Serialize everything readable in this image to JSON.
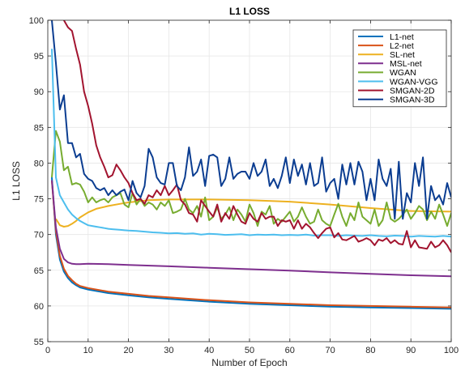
{
  "chart_data": {
    "type": "line",
    "title": "L1 LOSS",
    "xlabel": "Number of Epoch",
    "ylabel": "L1 LOSS",
    "xlim": [
      0,
      100
    ],
    "ylim": [
      55,
      100
    ],
    "xticks": [
      0,
      10,
      20,
      30,
      40,
      50,
      60,
      70,
      80,
      90,
      100
    ],
    "yticks": [
      55,
      60,
      65,
      70,
      75,
      80,
      85,
      90,
      95,
      100
    ],
    "grid": true,
    "legend_position": "top-right",
    "series": [
      {
        "name": "L1-net",
        "color": "#0072BD",
        "x": [
          1,
          2,
          3,
          4,
          5,
          6,
          7,
          8,
          10,
          12,
          15,
          20,
          25,
          30,
          40,
          50,
          60,
          70,
          80,
          90,
          100
        ],
        "y": [
          78,
          70,
          66.5,
          64.8,
          63.9,
          63.3,
          62.9,
          62.6,
          62.3,
          62.1,
          61.8,
          61.5,
          61.2,
          61.0,
          60.6,
          60.3,
          60.1,
          59.9,
          59.8,
          59.7,
          59.6
        ]
      },
      {
        "name": "L2-net",
        "color": "#D95319",
        "x": [
          1,
          2,
          3,
          4,
          5,
          6,
          7,
          8,
          10,
          12,
          15,
          20,
          25,
          30,
          40,
          50,
          60,
          70,
          80,
          90,
          100
        ],
        "y": [
          77.5,
          70.5,
          67,
          65.2,
          64.2,
          63.6,
          63.1,
          62.8,
          62.5,
          62.3,
          62.0,
          61.7,
          61.4,
          61.2,
          60.8,
          60.5,
          60.3,
          60.1,
          60.0,
          59.9,
          59.8
        ]
      },
      {
        "name": "SL-net",
        "color": "#EDB120",
        "x": [
          2,
          3,
          4,
          5,
          6,
          7,
          8,
          10,
          12,
          15,
          18,
          20,
          25,
          30,
          40,
          50,
          60,
          70,
          80,
          90,
          100
        ],
        "y": [
          72.2,
          71.3,
          71.1,
          71.2,
          71.5,
          71.9,
          72.4,
          73.1,
          73.6,
          74.0,
          74.3,
          74.5,
          74.8,
          74.9,
          74.9,
          74.8,
          74.6,
          74.2,
          73.7,
          73.3,
          73.2
        ]
      },
      {
        "name": "MSL-net",
        "color": "#7E2F8E",
        "x": [
          1,
          2,
          3,
          4,
          5,
          6,
          7,
          8,
          10,
          15,
          20,
          30,
          40,
          50,
          60,
          70,
          80,
          90,
          100
        ],
        "y": [
          77.6,
          71,
          68,
          66.6,
          66.1,
          65.9,
          65.85,
          65.85,
          65.9,
          65.85,
          65.75,
          65.55,
          65.35,
          65.15,
          64.95,
          64.7,
          64.5,
          64.3,
          64.15
        ]
      },
      {
        "name": "WGAN",
        "color": "#77AC30",
        "x": [
          1,
          2,
          3,
          4,
          5,
          6,
          7,
          8,
          9,
          10,
          11,
          12,
          13,
          14,
          15,
          16,
          17,
          18,
          19,
          20,
          21,
          22,
          23,
          24,
          25,
          26,
          27,
          28,
          29,
          30,
          31,
          32,
          33,
          34,
          35,
          36,
          37,
          38,
          39,
          40,
          41,
          42,
          43,
          44,
          45,
          46,
          47,
          48,
          49,
          50,
          51,
          52,
          53,
          54,
          55,
          56,
          57,
          58,
          59,
          60,
          61,
          62,
          63,
          64,
          65,
          66,
          67,
          68,
          69,
          70,
          71,
          72,
          73,
          74,
          75,
          76,
          77,
          78,
          79,
          80,
          81,
          82,
          83,
          84,
          85,
          86,
          87,
          88,
          89,
          90,
          91,
          92,
          93,
          94,
          95,
          96,
          97,
          98,
          99,
          100
        ],
        "y": [
          78,
          84.5,
          83,
          79,
          79.5,
          77,
          77.2,
          77,
          76,
          74.5,
          75.2,
          74.5,
          74.8,
          75,
          74.5,
          75.2,
          75.5,
          75.8,
          74.2,
          73.8,
          75.8,
          74.2,
          75,
          74,
          74.5,
          74.2,
          73.5,
          74.5,
          74,
          74.8,
          73,
          73.2,
          73.5,
          75,
          73.5,
          73,
          74,
          72.5,
          75.2,
          72,
          72.5,
          73.8,
          72.2,
          72.8,
          73.8,
          72,
          73.5,
          72.8,
          71.8,
          74.2,
          73,
          71.2,
          73.2,
          72.8,
          74,
          71.5,
          72.2,
          71.8,
          72.5,
          73.2,
          71.8,
          72.5,
          73.8,
          72.5,
          71.5,
          71.8,
          73.5,
          72,
          71.5,
          71.2,
          72.8,
          74.3,
          72.5,
          71.2,
          73,
          72,
          74.5,
          72.5,
          72,
          71.5,
          73.5,
          71.2,
          72,
          74.5,
          72.2,
          71.8,
          72.2,
          72.8,
          73.5,
          72.2,
          73,
          74,
          73.5,
          72,
          73.2,
          72.2,
          74.2,
          72.8,
          71.2,
          73
        ]
      },
      {
        "name": "WGAN-VGG",
        "color": "#4DBEEE",
        "x": [
          1,
          2,
          3,
          4,
          5,
          6,
          7,
          8,
          9,
          10,
          11,
          12,
          13,
          14,
          15,
          16,
          17,
          18,
          19,
          20,
          22,
          24,
          26,
          28,
          30,
          32,
          34,
          36,
          38,
          40,
          42,
          44,
          46,
          48,
          50,
          52,
          54,
          56,
          58,
          60,
          62,
          64,
          66,
          68,
          70,
          72,
          74,
          76,
          78,
          80,
          82,
          84,
          86,
          88,
          90,
          92,
          94,
          96,
          98,
          100
        ],
        "y": [
          96,
          78,
          75.5,
          74.5,
          73.5,
          72.8,
          72.3,
          71.9,
          71.6,
          71.3,
          71.2,
          71.1,
          71,
          70.9,
          70.8,
          70.75,
          70.7,
          70.65,
          70.6,
          70.55,
          70.5,
          70.4,
          70.3,
          70.25,
          70.15,
          70.2,
          70.1,
          70.15,
          70.0,
          70.1,
          70.05,
          69.95,
          70.0,
          70.05,
          69.9,
          70.0,
          69.95,
          70.0,
          69.9,
          69.95,
          69.9,
          70.0,
          69.85,
          69.9,
          69.9,
          69.8,
          69.9,
          69.85,
          69.8,
          69.9,
          69.8,
          69.75,
          69.85,
          69.8,
          69.7,
          69.8,
          69.75,
          69.7,
          69.8,
          69.7
        ]
      },
      {
        "name": "SMGAN-2D",
        "color": "#A2142F",
        "x": [
          4,
          5,
          6,
          7,
          8,
          9,
          10,
          11,
          12,
          13,
          14,
          15,
          16,
          17,
          18,
          19,
          20,
          21,
          22,
          23,
          24,
          25,
          26,
          27,
          28,
          29,
          30,
          31,
          32,
          33,
          34,
          35,
          36,
          37,
          38,
          39,
          40,
          41,
          42,
          43,
          44,
          45,
          46,
          47,
          48,
          49,
          50,
          51,
          52,
          53,
          54,
          55,
          56,
          57,
          58,
          59,
          60,
          61,
          62,
          63,
          64,
          65,
          66,
          67,
          68,
          69,
          70,
          71,
          72,
          73,
          74,
          75,
          76,
          77,
          78,
          79,
          80,
          81,
          82,
          83,
          84,
          85,
          86,
          87,
          88,
          89,
          90,
          91,
          92,
          93,
          94,
          95,
          96,
          97,
          98,
          99,
          100
        ],
        "y": [
          100,
          99,
          98.5,
          96,
          93.8,
          90,
          88,
          85.5,
          82.5,
          80.8,
          79.5,
          78,
          78.3,
          79.8,
          79,
          78,
          77.2,
          75.8,
          74.8,
          75,
          74.3,
          75.5,
          75.2,
          76.2,
          75.5,
          76.8,
          75.5,
          76.2,
          77,
          74.8,
          74.2,
          73,
          72.8,
          71.8,
          74.8,
          74,
          73.2,
          72.5,
          74.2,
          71.8,
          73,
          72.2,
          74,
          72.8,
          71.8,
          71.5,
          73,
          72.2,
          71.8,
          73,
          72.2,
          72.5,
          72.5,
          71.2,
          72,
          71.8,
          72,
          70.8,
          72,
          70.8,
          71.5,
          71,
          70.2,
          69.5,
          70.2,
          70.8,
          71,
          69.6,
          70.2,
          69.3,
          69.2,
          69.5,
          69.8,
          69,
          69.2,
          69.5,
          69.2,
          68.5,
          69.3,
          69.1,
          69.5,
          68.8,
          69.2,
          68.7,
          68.6,
          70.5,
          68.2,
          69.2,
          68.2,
          68.1,
          68,
          69,
          68.2,
          68.5,
          69.2,
          68.5,
          67.5
        ]
      },
      {
        "name": "SMGAN-3D",
        "color": "#0B3D91",
        "x": [
          1,
          2,
          3,
          4,
          5,
          6,
          7,
          8,
          9,
          10,
          11,
          12,
          13,
          14,
          15,
          16,
          17,
          18,
          19,
          20,
          21,
          22,
          23,
          24,
          25,
          26,
          27,
          28,
          29,
          30,
          31,
          32,
          33,
          34,
          35,
          36,
          37,
          38,
          39,
          40,
          41,
          42,
          43,
          44,
          45,
          46,
          47,
          48,
          49,
          50,
          51,
          52,
          53,
          54,
          55,
          56,
          57,
          58,
          59,
          60,
          61,
          62,
          63,
          64,
          65,
          66,
          67,
          68,
          69,
          70,
          71,
          72,
          73,
          74,
          75,
          76,
          77,
          78,
          79,
          80,
          81,
          82,
          83,
          84,
          85,
          86,
          87,
          88,
          89,
          90,
          91,
          92,
          93,
          94,
          95,
          96,
          97,
          98,
          99,
          100
        ],
        "y": [
          100,
          94,
          87.5,
          89.5,
          82.8,
          82.8,
          80.8,
          81.3,
          78.5,
          77.8,
          77.5,
          76.5,
          76.2,
          76.5,
          75.5,
          76.2,
          75.5,
          76,
          76.3,
          74.8,
          77.5,
          75.8,
          75.2,
          76.8,
          82,
          80.8,
          78,
          77.2,
          77,
          80,
          80,
          76.8,
          76.2,
          78,
          82.2,
          78.2,
          78.8,
          80.5,
          76.8,
          81,
          81.2,
          80.8,
          76.8,
          77.8,
          80.8,
          77.8,
          78.5,
          78.8,
          78.8,
          77.8,
          80,
          78.2,
          78.8,
          80.5,
          76.8,
          77.8,
          76.5,
          78.2,
          80.8,
          77.2,
          80.5,
          78.2,
          79.8,
          77,
          80,
          76.8,
          77.2,
          80.8,
          76,
          77.2,
          77.8,
          75,
          79.8,
          77,
          80,
          77,
          80.2,
          78.8,
          74.8,
          77.8,
          74.8,
          80.5,
          77.8,
          76.8,
          79.2,
          72.2,
          80.2,
          72.2,
          75.8,
          74.5,
          80,
          76.8,
          80.8,
          72.2,
          76.8,
          74.8,
          75.5,
          74.2,
          77.2,
          75.2
        ]
      }
    ]
  }
}
